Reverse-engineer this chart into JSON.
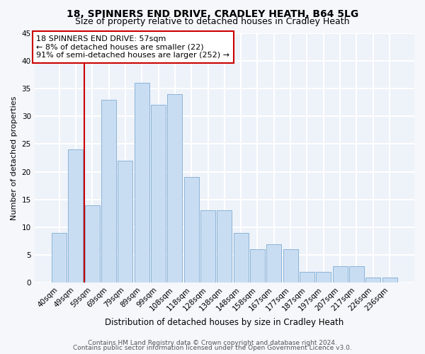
{
  "title1": "18, SPINNERS END DRIVE, CRADLEY HEATH, B64 5LG",
  "title2": "Size of property relative to detached houses in Cradley Heath",
  "xlabel": "Distribution of detached houses by size in Cradley Heath",
  "ylabel": "Number of detached properties",
  "categories": [
    "40sqm",
    "49sqm",
    "59sqm",
    "69sqm",
    "79sqm",
    "89sqm",
    "99sqm",
    "108sqm",
    "118sqm",
    "128sqm",
    "138sqm",
    "148sqm",
    "158sqm",
    "167sqm",
    "177sqm",
    "187sqm",
    "197sqm",
    "207sqm",
    "217sqm",
    "226sqm",
    "236sqm"
  ],
  "values": [
    9,
    24,
    14,
    33,
    22,
    36,
    32,
    34,
    19,
    13,
    13,
    9,
    6,
    7,
    6,
    2,
    2,
    3,
    3,
    1,
    1
  ],
  "bar_color": "#c9ddf2",
  "bar_edge_color": "#8ab4d8",
  "vline_x": 1.5,
  "vline_color": "#cc0000",
  "annotation_text": "18 SPINNERS END DRIVE: 57sqm\n← 8% of detached houses are smaller (22)\n91% of semi-detached houses are larger (252) →",
  "annotation_box_color": "#ffffff",
  "annotation_box_edge": "#cc0000",
  "ylim": [
    0,
    45
  ],
  "yticks": [
    0,
    5,
    10,
    15,
    20,
    25,
    30,
    35,
    40,
    45
  ],
  "footer1": "Contains HM Land Registry data © Crown copyright and database right 2024.",
  "footer2": "Contains public sector information licensed under the Open Government Licence v3.0.",
  "bg_color": "#eef2f9",
  "grid_color": "#ffffff",
  "title1_fontsize": 10,
  "title2_fontsize": 9,
  "xlabel_fontsize": 8.5,
  "ylabel_fontsize": 8,
  "tick_fontsize": 7.5,
  "annotation_fontsize": 8,
  "footer_fontsize": 6.5
}
